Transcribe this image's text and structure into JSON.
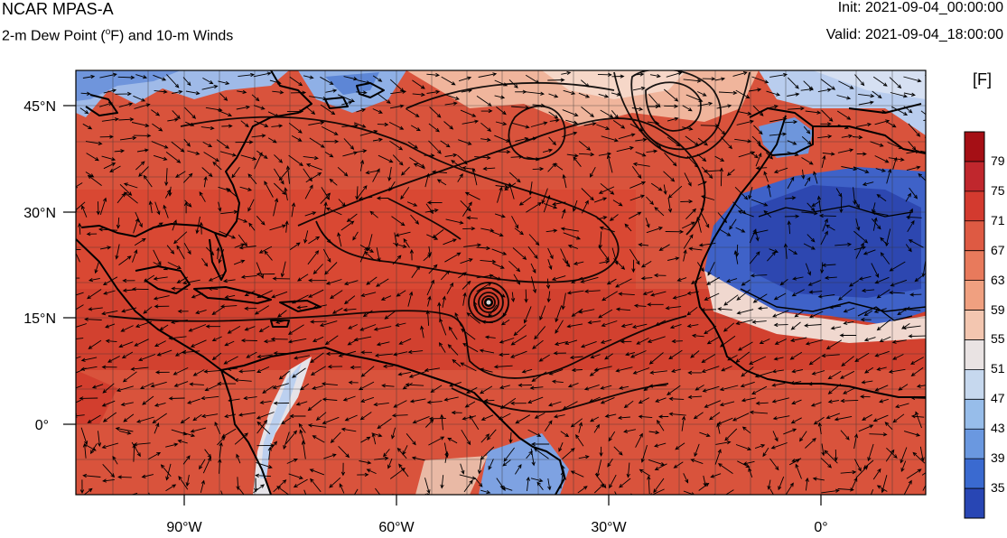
{
  "header": {
    "title": "NCAR MPAS-A",
    "subtitle": "2-m Dew Point (°F) and 10-m Winds",
    "subtitle_prefix": "2-m Dew Point (",
    "subtitle_sup": "o",
    "subtitle_suffix": "F) and 10-m Winds",
    "init": "Init: 2021-09-04_00:00:00",
    "valid": "Valid: 2021-09-04_18:00:00"
  },
  "map": {
    "lat_labels": [
      "45°N",
      "30°N",
      "15°N",
      "0°"
    ],
    "lon_labels": [
      "90°W",
      "60°W",
      "30°W",
      "0°"
    ],
    "features": [
      "dew-point-field",
      "wind-vectors",
      "pressure-contours",
      "coastlines",
      "hurricane-center"
    ]
  },
  "colorbar": {
    "units": "[F]",
    "labels": [
      "79",
      "75",
      "71",
      "67",
      "63",
      "59",
      "55",
      "51",
      "47",
      "43",
      "39",
      "35"
    ],
    "colors": [
      "#a50f15",
      "#c0272d",
      "#d33a2f",
      "#de5a43",
      "#e87a5c",
      "#f0a080",
      "#f3c6b0",
      "#e9e3e3",
      "#c6d8ee",
      "#97bdea",
      "#6a98e0",
      "#3a6ad0",
      "#2846b4"
    ]
  }
}
